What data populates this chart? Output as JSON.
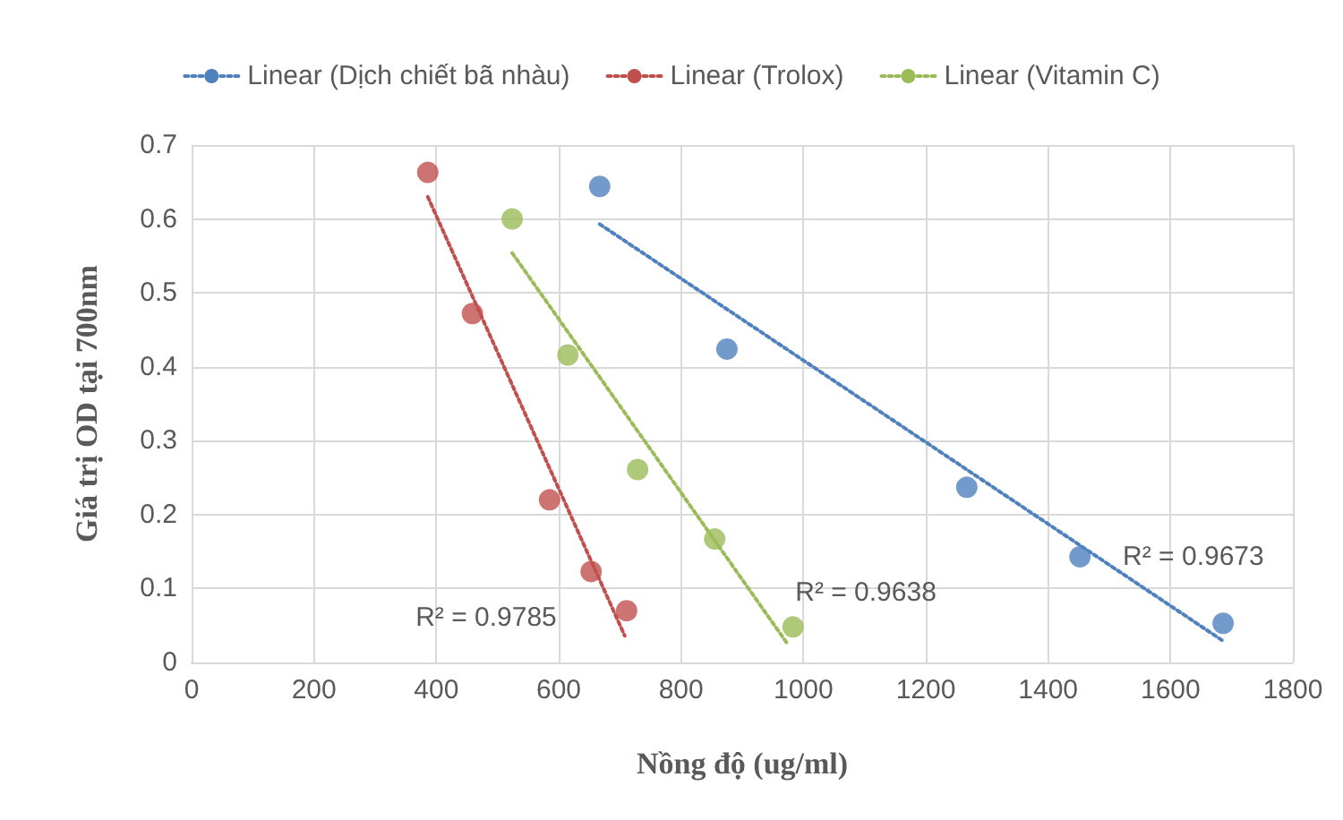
{
  "chart_data": {
    "type": "scatter",
    "xlabel": "Nồng độ (ug/ml)",
    "ylabel": "Giá trị OD tại 700nm",
    "xlim": [
      0,
      1800
    ],
    "xticks": [
      0,
      200,
      400,
      600,
      800,
      1000,
      1200,
      1400,
      1600,
      1800
    ],
    "ylim": [
      0,
      0.7
    ],
    "yticks": [
      0,
      0.1,
      0.2,
      0.3,
      0.4,
      0.5,
      0.6,
      0.7
    ],
    "grid": true,
    "legend": "top",
    "series": [
      {
        "color": "#4f81bd",
        "marker": "circle",
        "x": [
          667,
          875,
          1267,
          1452,
          1686
        ],
        "values": [
          0.644,
          0.424,
          0.237,
          0.143,
          0.053
        ]
      },
      {
        "color": "#c0504d",
        "marker": "circle",
        "x": [
          386,
          459,
          585,
          653,
          711
        ],
        "values": [
          0.663,
          0.472,
          0.22,
          0.123,
          0.07
        ]
      },
      {
        "color": "#9bbb59",
        "marker": "circle",
        "x": [
          524,
          615,
          729,
          855,
          983
        ],
        "values": [
          0.6,
          0.416,
          0.261,
          0.167,
          0.048
        ]
      },
      {
        "type": "line",
        "name": "Linear (Dịch chiết bã nhàu)",
        "color": "#4f81bd",
        "line_style": "dotted",
        "x": [
          667,
          1686
        ],
        "values": [
          0.593,
          0.029
        ]
      },
      {
        "type": "line",
        "name": "Linear (Trolox)",
        "color": "#c0504d",
        "line_style": "dotted",
        "x": [
          386,
          708
        ],
        "values": [
          0.63,
          0.036
        ]
      },
      {
        "type": "line",
        "name": "Linear (Vitamin C)",
        "color": "#9bbb59",
        "line_style": "dotted",
        "x": [
          524,
          975
        ],
        "values": [
          0.554,
          0.024
        ]
      }
    ],
    "annotations": [
      "R² = 0.9673",
      "R² = 0.9785",
      "R² = 0.9638"
    ]
  }
}
